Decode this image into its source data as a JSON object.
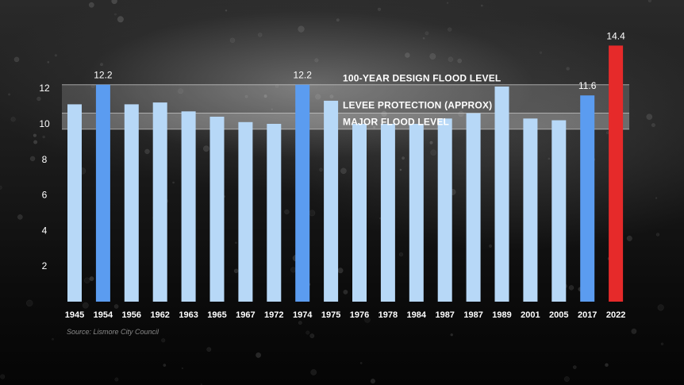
{
  "chart_data": {
    "type": "bar",
    "categories": [
      "1945",
      "1954",
      "1956",
      "1962",
      "1963",
      "1965",
      "1967",
      "1972",
      "1974",
      "1975",
      "1976",
      "1978",
      "1984",
      "1987",
      "1987",
      "1989",
      "2001",
      "2005",
      "2017",
      "2022"
    ],
    "values": [
      11.1,
      12.2,
      11.1,
      11.2,
      10.7,
      10.4,
      10.1,
      10.0,
      12.2,
      11.3,
      10.0,
      10.0,
      10.0,
      10.3,
      10.6,
      12.1,
      10.3,
      10.2,
      11.6,
      14.4
    ],
    "highlight": [
      false,
      true,
      false,
      false,
      false,
      false,
      false,
      false,
      true,
      false,
      false,
      false,
      false,
      false,
      false,
      false,
      false,
      false,
      true,
      "red"
    ],
    "data_labels": [
      {
        "index": 1,
        "text": "12.2"
      },
      {
        "index": 8,
        "text": "12.2"
      },
      {
        "index": 18,
        "text": "11.6"
      },
      {
        "index": 19,
        "text": "14.4"
      }
    ],
    "y_ticks": [
      2,
      4,
      6,
      8,
      10,
      12
    ],
    "ylim": [
      0,
      16
    ],
    "reference_lines": [
      {
        "label": "100-YEAR DESIGN FLOOD LEVEL",
        "value": 12.2
      },
      {
        "label": "LEVEE PROTECTION (APPROX)",
        "value": 10.6
      },
      {
        "label": "MAJOR FLOOD LEVEL",
        "value": 9.7
      }
    ],
    "grid": false,
    "source": "Source: Lismore City Council"
  },
  "colors": {
    "bar_normal": "#b7d8f7",
    "bar_highlight": "#5b9cf0",
    "bar_red": "#e62a2a",
    "band_fill": "#ffffff",
    "band_line": "#d0d0d0"
  }
}
